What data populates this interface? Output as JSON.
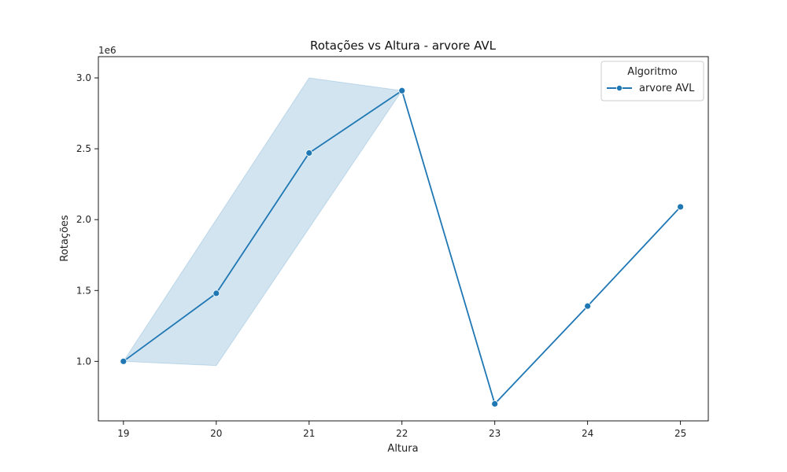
{
  "chart_data": {
    "type": "line",
    "title": "Rotações vs Altura - arvore AVL",
    "xlabel": "Altura",
    "ylabel": "Rotações",
    "y_offset_label": "1e6",
    "x_ticks": [
      "19",
      "20",
      "21",
      "22",
      "23",
      "24",
      "25"
    ],
    "y_ticks": [
      "1.0",
      "1.5",
      "2.0",
      "2.5",
      "3.0"
    ],
    "xlim": [
      18.73,
      25.3
    ],
    "ylim": [
      0.58,
      3.15
    ],
    "grid": false,
    "legend": {
      "title": "Algoritmo",
      "position": "top-right"
    },
    "series": [
      {
        "name": "arvore AVL",
        "color": "#1f77b4",
        "marker": "circle",
        "x": [
          19,
          20,
          21,
          22,
          23,
          24,
          25
        ],
        "y": [
          1.0,
          1.48,
          2.47,
          2.91,
          0.7,
          1.39,
          2.09
        ],
        "ci_lower": [
          1.0,
          0.97,
          1.94,
          2.91,
          0.7,
          1.39,
          2.09
        ],
        "ci_upper": [
          1.0,
          2.0,
          3.0,
          2.91,
          0.7,
          1.39,
          2.09
        ]
      }
    ]
  }
}
